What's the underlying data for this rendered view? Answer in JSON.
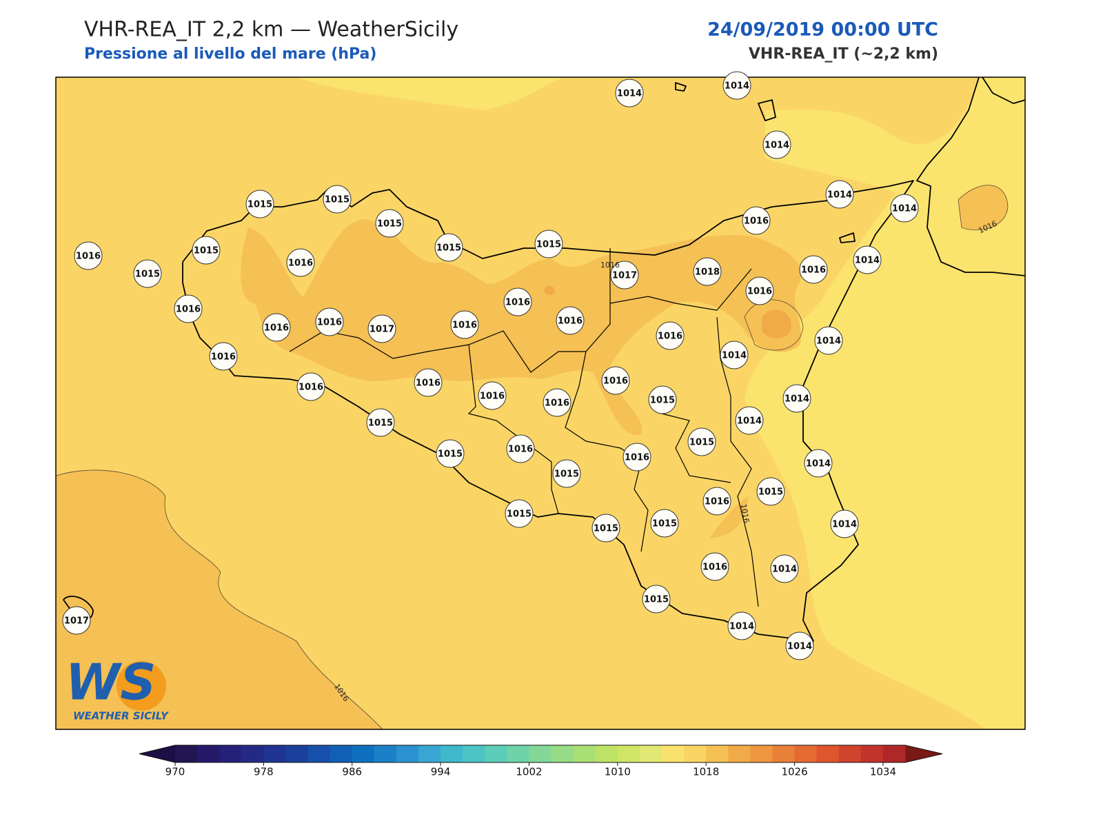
{
  "header": {
    "title": "VHR-REA_IT 2,2 km — WeatherSicily",
    "subtitle": "Pressione al livello del mare (hPa)",
    "datetime": "24/09/2019 00:00 UTC",
    "model": "VHR-REA_IT (~2,2 km)"
  },
  "logo": {
    "mark": "WS",
    "text": "WEATHER SICILY"
  },
  "contour_labels": [
    1016,
    1016,
    1016,
    1016
  ],
  "stations": [
    1014,
    1014,
    1014,
    1014,
    1014,
    1015,
    1015,
    1015,
    1015,
    1015,
    1016,
    1016,
    1015,
    1015,
    1016,
    1017,
    1018,
    1016,
    1014,
    1016,
    1016,
    1016,
    1016,
    1016,
    1017,
    1016,
    1016,
    1016,
    1014,
    1014,
    1016,
    1016,
    1016,
    1016,
    1016,
    1016,
    1015,
    1014,
    1014,
    1015,
    1015,
    1015,
    1016,
    1016,
    1014,
    1015,
    1015,
    1016,
    1015,
    1015,
    1015,
    1014,
    1016,
    1014,
    1015,
    1014,
    1014,
    1017
  ],
  "colorbar": {
    "range": [
      970,
      1036
    ],
    "ticks": [
      970,
      978,
      986,
      994,
      1002,
      1010,
      1018,
      1026,
      1034
    ],
    "under_color": "#1c0f45",
    "over_color": "#7a1a16",
    "colors": [
      "#231551",
      "#26196a",
      "#25207a",
      "#232a85",
      "#1f3591",
      "#1b409c",
      "#1650aa",
      "#1260b5",
      "#0f70bf",
      "#1c80c8",
      "#2a92cf",
      "#38a6d2",
      "#3fb8cc",
      "#4cc4c4",
      "#5ccdb8",
      "#6fd2a8",
      "#83d898",
      "#97dc86",
      "#aadf74",
      "#bde266",
      "#d0e566",
      "#e1e873",
      "#f9e26b",
      "#fad565",
      "#f5c054",
      "#f1aa48",
      "#ee9640",
      "#e98038",
      "#e56a32",
      "#df552e",
      "#d0432d",
      "#c1332b",
      "#af2728"
    ]
  }
}
